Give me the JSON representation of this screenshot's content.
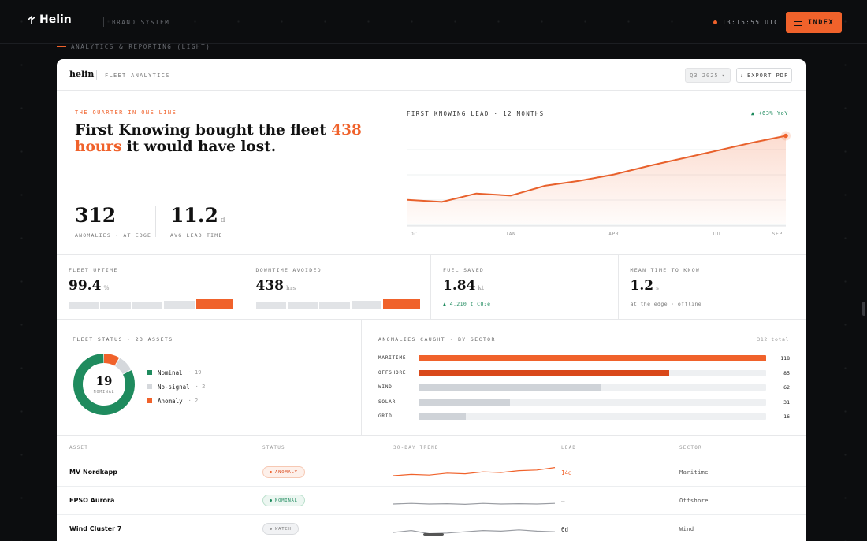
{
  "topbar": {
    "logo": "Helin",
    "brand_label": "BRAND SYSTEM",
    "clock": "13:15:55 UTC",
    "index_label": "INDEX"
  },
  "section_label": "ANALYTICS & REPORTING (LIGHT)",
  "card": {
    "logo": "helin",
    "title": "FLEET ANALYTICS",
    "quarter_select": "Q3 2025",
    "export_label": "EXPORT PDF"
  },
  "hero": {
    "eyebrow": "THE QUARTER IN ONE LINE",
    "headline_pre": "First Knowing bought the fleet ",
    "headline_highlight": "438 hours",
    "headline_post": " it would have lost.",
    "kpis": [
      {
        "value": "312",
        "unit": "",
        "label": "ANOMALIES · AT EDGE"
      },
      {
        "value": "11.2",
        "unit": "d",
        "label": "AVG LEAD TIME"
      }
    ]
  },
  "lead_chart": {
    "title": "FIRST KNOWING LEAD · 12 MONTHS",
    "badge": "▲ +63% YoY"
  },
  "chart_data": {
    "type": "area",
    "title": "FIRST KNOWING LEAD · 12 MONTHS",
    "x_ticks": [
      "OCT",
      "JAN",
      "APR",
      "JUL",
      "SEP"
    ],
    "x": [
      "OCT",
      "NOV",
      "DEC",
      "JAN",
      "FEB",
      "MAR",
      "APR",
      "MAY",
      "JUN",
      "JUL",
      "AUG",
      "SEP"
    ],
    "values": [
      3.5,
      3.2,
      4.4,
      4.1,
      5.5,
      6.2,
      7.1,
      8.3,
      9.4,
      10.5,
      11.6,
      12.6
    ],
    "ylim": [
      0,
      14
    ],
    "grid": true,
    "color": "#e8612c"
  },
  "kpi_row": [
    {
      "label": "FLEET UPTIME",
      "value": "99.4",
      "unit": "%",
      "sub": "",
      "bars": [
        0.55,
        0.6,
        0.6,
        0.7,
        1.0
      ]
    },
    {
      "label": "DOWNTIME AVOIDED",
      "value": "438",
      "unit": "hrs",
      "sub": "",
      "bars": [
        0.45,
        0.6,
        0.65,
        0.75,
        1.0
      ]
    },
    {
      "label": "FUEL SAVED",
      "value": "1.84",
      "unit": "kt",
      "sub": "▲ 4,210 t CO₂e",
      "bars": []
    },
    {
      "label": "MEAN TIME TO KNOW",
      "value": "1.2",
      "unit": "s",
      "sub": "at the edge · offline",
      "bars": []
    }
  ],
  "fleet_status": {
    "title": "FLEET STATUS · 23 ASSETS",
    "center_value": "19",
    "center_label": "NOMINAL",
    "legend": [
      {
        "name": "Nominal",
        "count": "19",
        "value": 19,
        "color": "#1f8b5e"
      },
      {
        "name": "No-signal",
        "count": "2",
        "value": 2,
        "color": "#d5d8dc"
      },
      {
        "name": "Anomaly",
        "count": "2",
        "value": 2,
        "color": "#f0622b"
      }
    ]
  },
  "sectors": {
    "title": "ANOMALIES CAUGHT · BY SECTOR",
    "total": "312 total",
    "max": 118,
    "items": [
      {
        "name": "MARITIME",
        "value": 118,
        "label": "118",
        "color": "#f0622b"
      },
      {
        "name": "OFFSHORE",
        "value": 85,
        "label": "85",
        "color": "#d9481a"
      },
      {
        "name": "WIND",
        "value": 62,
        "label": "62",
        "color": "#cfd3d8"
      },
      {
        "name": "SOLAR",
        "value": 31,
        "label": "31",
        "color": "#cfd3d8"
      },
      {
        "name": "GRID",
        "value": 16,
        "label": "16",
        "color": "#cfd3d8"
      }
    ]
  },
  "table": {
    "headers": {
      "asset": "ASSET",
      "status": "STATUS",
      "trend": "30-DAY TREND",
      "lead": "LEAD",
      "sector": "SECTOR"
    },
    "rows": [
      {
        "asset": "MV Nordkapp",
        "status": "ANOMALY",
        "lead": "14d",
        "sector": "Maritime",
        "trend": [
          3,
          3.2,
          3.1,
          3.4,
          3.3,
          3.6,
          3.5,
          3.8,
          3.9,
          4.3
        ],
        "kind": "anomaly"
      },
      {
        "asset": "FPSO Aurora",
        "status": "NOMINAL",
        "lead": "—",
        "sector": "Offshore",
        "trend": [
          3,
          3.1,
          3,
          3.05,
          2.95,
          3.1,
          3,
          3.05,
          3,
          3.1
        ],
        "kind": "nominal"
      },
      {
        "asset": "Wind Cluster 7",
        "status": "WATCH",
        "lead": "6d",
        "sector": "Wind",
        "trend": [
          3,
          3.3,
          2.8,
          2.9,
          3.1,
          3.3,
          3.2,
          3.4,
          3.2,
          3.1
        ],
        "kind": "watch"
      }
    ]
  }
}
